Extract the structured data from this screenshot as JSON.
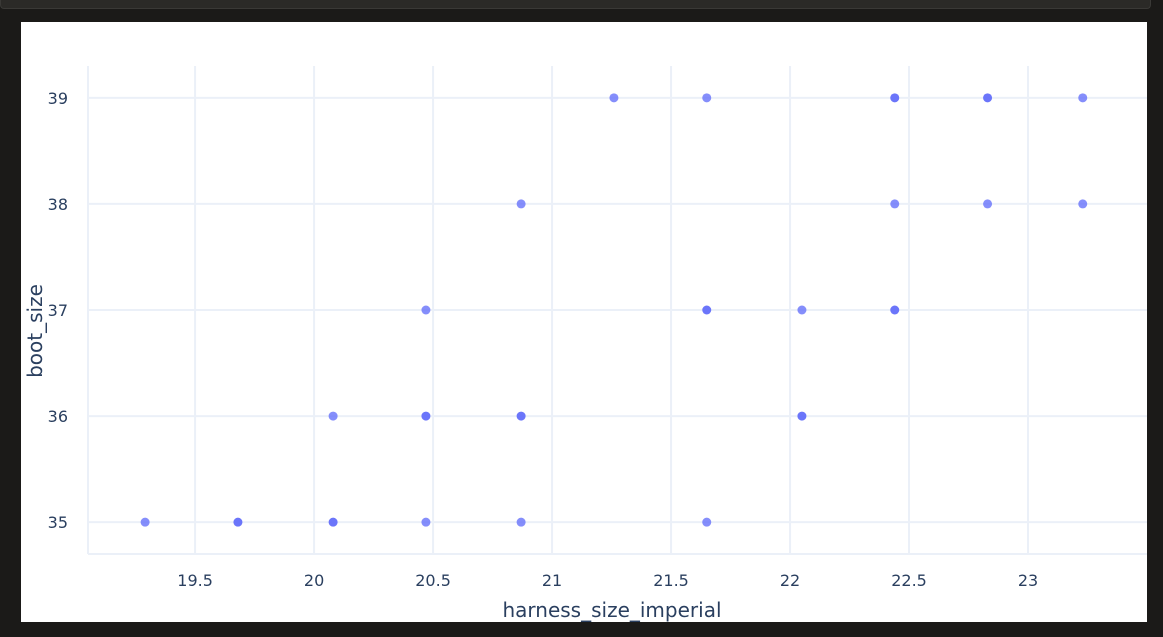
{
  "chart_data": {
    "type": "scatter",
    "xlabel": "harness_size_imperial",
    "ylabel": "boot_size",
    "xlim": [
      19.05,
      23.5
    ],
    "ylim": [
      34.7,
      39.3
    ],
    "xticks": [
      19.5,
      20,
      20.5,
      21,
      21.5,
      22,
      22.5,
      23
    ],
    "xtick_labels": [
      "19.5",
      "20",
      "20.5",
      "21",
      "21.5",
      "22",
      "22.5",
      "23"
    ],
    "yticks": [
      35,
      36,
      37,
      38,
      39
    ],
    "ytick_labels": [
      "35",
      "36",
      "37",
      "38",
      "39"
    ],
    "grid": true,
    "marker_color": "#636efa",
    "marker_opacity_light": 0.78,
    "points": [
      {
        "x": 19.29,
        "y": 35,
        "overlap": false
      },
      {
        "x": 19.68,
        "y": 35,
        "overlap": true
      },
      {
        "x": 20.08,
        "y": 35,
        "overlap": true
      },
      {
        "x": 20.47,
        "y": 35,
        "overlap": false
      },
      {
        "x": 20.87,
        "y": 35,
        "overlap": false
      },
      {
        "x": 21.65,
        "y": 35,
        "overlap": false
      },
      {
        "x": 20.08,
        "y": 36,
        "overlap": false
      },
      {
        "x": 20.47,
        "y": 36,
        "overlap": true
      },
      {
        "x": 20.87,
        "y": 36,
        "overlap": true
      },
      {
        "x": 22.05,
        "y": 36,
        "overlap": true
      },
      {
        "x": 20.47,
        "y": 37,
        "overlap": false
      },
      {
        "x": 21.65,
        "y": 37,
        "overlap": true
      },
      {
        "x": 22.05,
        "y": 37,
        "overlap": false
      },
      {
        "x": 22.44,
        "y": 37,
        "overlap": true
      },
      {
        "x": 20.87,
        "y": 38,
        "overlap": false
      },
      {
        "x": 22.44,
        "y": 38,
        "overlap": false
      },
      {
        "x": 22.83,
        "y": 38,
        "overlap": false
      },
      {
        "x": 23.23,
        "y": 38,
        "overlap": false
      },
      {
        "x": 21.26,
        "y": 39,
        "overlap": false
      },
      {
        "x": 21.65,
        "y": 39,
        "overlap": false
      },
      {
        "x": 22.44,
        "y": 39,
        "overlap": true
      },
      {
        "x": 22.83,
        "y": 39,
        "overlap": true
      },
      {
        "x": 23.23,
        "y": 39,
        "overlap": false
      }
    ]
  }
}
